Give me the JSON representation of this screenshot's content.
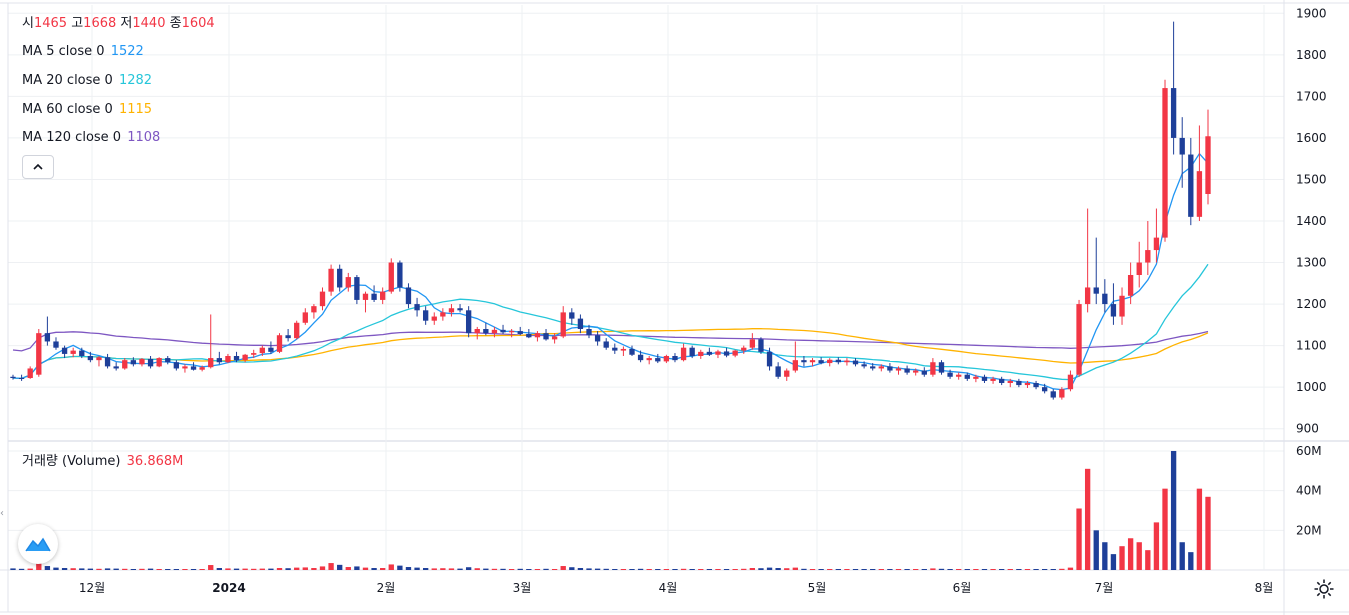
{
  "ohlc": {
    "open_label": "시",
    "open": "1465",
    "high_label": "고",
    "high": "1668",
    "low_label": "저",
    "low": "1440",
    "close_label": "종",
    "close": "1604"
  },
  "indicators": [
    {
      "label": "MA 5 close 0",
      "value": "1522",
      "color": "#2196f3"
    },
    {
      "label": "MA 20 close 0",
      "value": "1282",
      "color": "#26c6da"
    },
    {
      "label": "MA 60 close 0",
      "value": "1115",
      "color": "#ffb300"
    },
    {
      "label": "MA 120 close 0",
      "value": "1108",
      "color": "#7e57c2"
    }
  ],
  "volume_legend": {
    "label": "거래량 (Volume)",
    "value": "36.868M"
  },
  "collapse_icon": "chevron-up-icon",
  "settings_icon": "gear-icon",
  "logo_icon": "tradingview-logo-icon",
  "colors": {
    "up": "#f23645",
    "down": "#1e3f99",
    "grid": "#eef0f3"
  },
  "chart_data": {
    "type": "candlestick",
    "price_axis": {
      "ticks": [
        "1900",
        "1800",
        "1700",
        "1600",
        "1500",
        "1400",
        "1300",
        "1200",
        "1100",
        "1000",
        "900"
      ],
      "range": [
        880,
        1920
      ]
    },
    "volume_axis": {
      "ticks": [
        "60M",
        "40M",
        "20M"
      ],
      "range": [
        0,
        62
      ]
    },
    "time_axis": {
      "ticks": [
        "12월",
        "2024",
        "2월",
        "3월",
        "4월",
        "5월",
        "6월",
        "7월",
        "8월"
      ]
    },
    "candles": [
      [
        1025,
        1030,
        1018,
        1022,
        0.8
      ],
      [
        1022,
        1030,
        1015,
        1020,
        0.6
      ],
      [
        1022,
        1050,
        1020,
        1045,
        0.7
      ],
      [
        1030,
        1140,
        1025,
        1130,
        3.2
      ],
      [
        1130,
        1170,
        1100,
        1110,
        2.0
      ],
      [
        1110,
        1120,
        1090,
        1095,
        1.2
      ],
      [
        1095,
        1100,
        1070,
        1080,
        1.0
      ],
      [
        1080,
        1095,
        1072,
        1088,
        0.9
      ],
      [
        1088,
        1095,
        1070,
        1075,
        0.8
      ],
      [
        1075,
        1085,
        1060,
        1065,
        0.7
      ],
      [
        1065,
        1075,
        1050,
        1072,
        0.6
      ],
      [
        1072,
        1080,
        1045,
        1050,
        0.8
      ],
      [
        1050,
        1060,
        1040,
        1045,
        0.7
      ],
      [
        1045,
        1070,
        1042,
        1065,
        0.6
      ],
      [
        1065,
        1072,
        1050,
        1055,
        0.5
      ],
      [
        1055,
        1070,
        1050,
        1068,
        0.6
      ],
      [
        1068,
        1075,
        1045,
        1050,
        0.7
      ],
      [
        1050,
        1072,
        1048,
        1070,
        0.5
      ],
      [
        1070,
        1075,
        1055,
        1060,
        0.5
      ],
      [
        1060,
        1065,
        1040,
        1045,
        0.5
      ],
      [
        1045,
        1055,
        1035,
        1050,
        0.4
      ],
      [
        1050,
        1060,
        1040,
        1042,
        0.4
      ],
      [
        1042,
        1052,
        1038,
        1048,
        0.5
      ],
      [
        1048,
        1175,
        1045,
        1070,
        2.5
      ],
      [
        1070,
        1085,
        1055,
        1060,
        1.0
      ],
      [
        1060,
        1080,
        1058,
        1075,
        0.8
      ],
      [
        1075,
        1085,
        1060,
        1065,
        0.7
      ],
      [
        1065,
        1080,
        1060,
        1078,
        0.7
      ],
      [
        1078,
        1090,
        1070,
        1082,
        0.6
      ],
      [
        1082,
        1100,
        1075,
        1095,
        0.7
      ],
      [
        1095,
        1110,
        1080,
        1085,
        0.7
      ],
      [
        1085,
        1130,
        1082,
        1125,
        1.0
      ],
      [
        1125,
        1140,
        1110,
        1118,
        0.9
      ],
      [
        1118,
        1160,
        1115,
        1155,
        1.2
      ],
      [
        1155,
        1190,
        1150,
        1180,
        1.3
      ],
      [
        1180,
        1200,
        1165,
        1195,
        1.0
      ],
      [
        1195,
        1240,
        1185,
        1230,
        1.8
      ],
      [
        1230,
        1295,
        1220,
        1285,
        3.5
      ],
      [
        1285,
        1295,
        1230,
        1240,
        2.6
      ],
      [
        1240,
        1275,
        1230,
        1265,
        1.5
      ],
      [
        1265,
        1270,
        1200,
        1210,
        1.8
      ],
      [
        1210,
        1230,
        1180,
        1225,
        1.2
      ],
      [
        1225,
        1245,
        1205,
        1210,
        1.0
      ],
      [
        1210,
        1240,
        1200,
        1230,
        1.0
      ],
      [
        1230,
        1310,
        1225,
        1300,
        2.8
      ],
      [
        1300,
        1305,
        1230,
        1240,
        2.2
      ],
      [
        1240,
        1250,
        1190,
        1200,
        1.5
      ],
      [
        1200,
        1215,
        1170,
        1185,
        1.2
      ],
      [
        1185,
        1195,
        1150,
        1160,
        1.0
      ],
      [
        1160,
        1180,
        1150,
        1170,
        0.8
      ],
      [
        1170,
        1190,
        1160,
        1180,
        0.9
      ],
      [
        1180,
        1200,
        1170,
        1190,
        0.8
      ],
      [
        1190,
        1200,
        1180,
        1185,
        0.7
      ],
      [
        1185,
        1195,
        1120,
        1130,
        1.4
      ],
      [
        1130,
        1145,
        1115,
        1140,
        0.9
      ],
      [
        1140,
        1155,
        1125,
        1130,
        0.7
      ],
      [
        1130,
        1145,
        1120,
        1138,
        0.6
      ],
      [
        1138,
        1150,
        1128,
        1132,
        0.6
      ],
      [
        1132,
        1140,
        1120,
        1135,
        0.5
      ],
      [
        1135,
        1145,
        1125,
        1128,
        0.6
      ],
      [
        1128,
        1140,
        1118,
        1120,
        0.5
      ],
      [
        1120,
        1135,
        1110,
        1130,
        0.5
      ],
      [
        1130,
        1140,
        1112,
        1115,
        0.6
      ],
      [
        1115,
        1130,
        1105,
        1122,
        0.5
      ],
      [
        1122,
        1195,
        1118,
        1180,
        2.0
      ],
      [
        1180,
        1190,
        1150,
        1165,
        1.4
      ],
      [
        1165,
        1175,
        1130,
        1140,
        1.0
      ],
      [
        1140,
        1150,
        1118,
        1125,
        0.8
      ],
      [
        1125,
        1135,
        1100,
        1110,
        0.7
      ],
      [
        1110,
        1118,
        1090,
        1095,
        0.6
      ],
      [
        1095,
        1105,
        1080,
        1088,
        0.5
      ],
      [
        1088,
        1098,
        1075,
        1092,
        0.5
      ],
      [
        1092,
        1100,
        1075,
        1078,
        0.5
      ],
      [
        1078,
        1088,
        1060,
        1065,
        0.6
      ],
      [
        1065,
        1075,
        1055,
        1070,
        0.5
      ],
      [
        1070,
        1080,
        1058,
        1062,
        0.4
      ],
      [
        1062,
        1078,
        1058,
        1075,
        0.5
      ],
      [
        1075,
        1082,
        1060,
        1065,
        0.4
      ],
      [
        1065,
        1105,
        1062,
        1095,
        0.6
      ],
      [
        1095,
        1100,
        1070,
        1075,
        0.5
      ],
      [
        1075,
        1090,
        1068,
        1085,
        0.5
      ],
      [
        1085,
        1095,
        1075,
        1078,
        0.4
      ],
      [
        1078,
        1090,
        1070,
        1086,
        0.4
      ],
      [
        1086,
        1095,
        1072,
        1076,
        0.4
      ],
      [
        1076,
        1090,
        1072,
        1088,
        0.4
      ],
      [
        1088,
        1100,
        1080,
        1095,
        0.6
      ],
      [
        1095,
        1130,
        1090,
        1115,
        1.0
      ],
      [
        1115,
        1120,
        1080,
        1085,
        0.9
      ],
      [
        1085,
        1095,
        1040,
        1050,
        1.2
      ],
      [
        1050,
        1060,
        1020,
        1025,
        1.0
      ],
      [
        1025,
        1045,
        1015,
        1040,
        0.9
      ],
      [
        1040,
        1110,
        1035,
        1065,
        1.2
      ],
      [
        1065,
        1075,
        1050,
        1060,
        0.6
      ],
      [
        1060,
        1070,
        1050,
        1065,
        0.5
      ],
      [
        1065,
        1072,
        1055,
        1058,
        0.5
      ],
      [
        1058,
        1070,
        1050,
        1066,
        0.4
      ],
      [
        1066,
        1072,
        1055,
        1060,
        0.4
      ],
      [
        1060,
        1070,
        1052,
        1064,
        0.4
      ],
      [
        1064,
        1070,
        1050,
        1055,
        0.4
      ],
      [
        1055,
        1062,
        1045,
        1050,
        0.4
      ],
      [
        1050,
        1058,
        1040,
        1045,
        0.4
      ],
      [
        1045,
        1055,
        1038,
        1050,
        0.3
      ],
      [
        1050,
        1058,
        1035,
        1040,
        0.4
      ],
      [
        1040,
        1050,
        1030,
        1045,
        0.3
      ],
      [
        1045,
        1052,
        1030,
        1035,
        0.4
      ],
      [
        1035,
        1045,
        1028,
        1040,
        0.3
      ],
      [
        1040,
        1048,
        1025,
        1030,
        0.4
      ],
      [
        1030,
        1070,
        1025,
        1060,
        0.8
      ],
      [
        1060,
        1065,
        1030,
        1035,
        0.6
      ],
      [
        1035,
        1042,
        1020,
        1025,
        0.4
      ],
      [
        1025,
        1035,
        1018,
        1030,
        0.3
      ],
      [
        1030,
        1035,
        1015,
        1020,
        0.3
      ],
      [
        1020,
        1030,
        1012,
        1025,
        0.3
      ],
      [
        1025,
        1030,
        1010,
        1015,
        0.3
      ],
      [
        1015,
        1025,
        1008,
        1020,
        0.3
      ],
      [
        1020,
        1025,
        1005,
        1010,
        0.3
      ],
      [
        1010,
        1020,
        1000,
        1015,
        0.3
      ],
      [
        1015,
        1020,
        1000,
        1005,
        0.3
      ],
      [
        1005,
        1015,
        998,
        1010,
        0.3
      ],
      [
        1010,
        1015,
        995,
        1000,
        0.3
      ],
      [
        1000,
        1008,
        985,
        990,
        0.4
      ],
      [
        990,
        995,
        970,
        975,
        0.5
      ],
      [
        975,
        1000,
        970,
        995,
        0.6
      ],
      [
        995,
        1040,
        990,
        1030,
        1.2
      ],
      [
        1030,
        1210,
        1025,
        1200,
        31
      ],
      [
        1200,
        1430,
        1180,
        1240,
        51
      ],
      [
        1240,
        1360,
        1200,
        1225,
        20
      ],
      [
        1225,
        1260,
        1180,
        1200,
        14
      ],
      [
        1200,
        1250,
        1150,
        1170,
        8
      ],
      [
        1170,
        1240,
        1150,
        1220,
        12
      ],
      [
        1220,
        1300,
        1200,
        1270,
        16
      ],
      [
        1270,
        1350,
        1240,
        1300,
        14
      ],
      [
        1300,
        1400,
        1270,
        1330,
        10
      ],
      [
        1330,
        1430,
        1300,
        1360,
        24
      ],
      [
        1360,
        1740,
        1350,
        1720,
        41
      ],
      [
        1720,
        1880,
        1560,
        1600,
        60
      ],
      [
        1600,
        1650,
        1480,
        1560,
        14
      ],
      [
        1560,
        1600,
        1390,
        1410,
        9
      ],
      [
        1410,
        1630,
        1400,
        1520,
        41
      ],
      [
        1465,
        1668,
        1440,
        1604,
        36.9
      ]
    ]
  }
}
